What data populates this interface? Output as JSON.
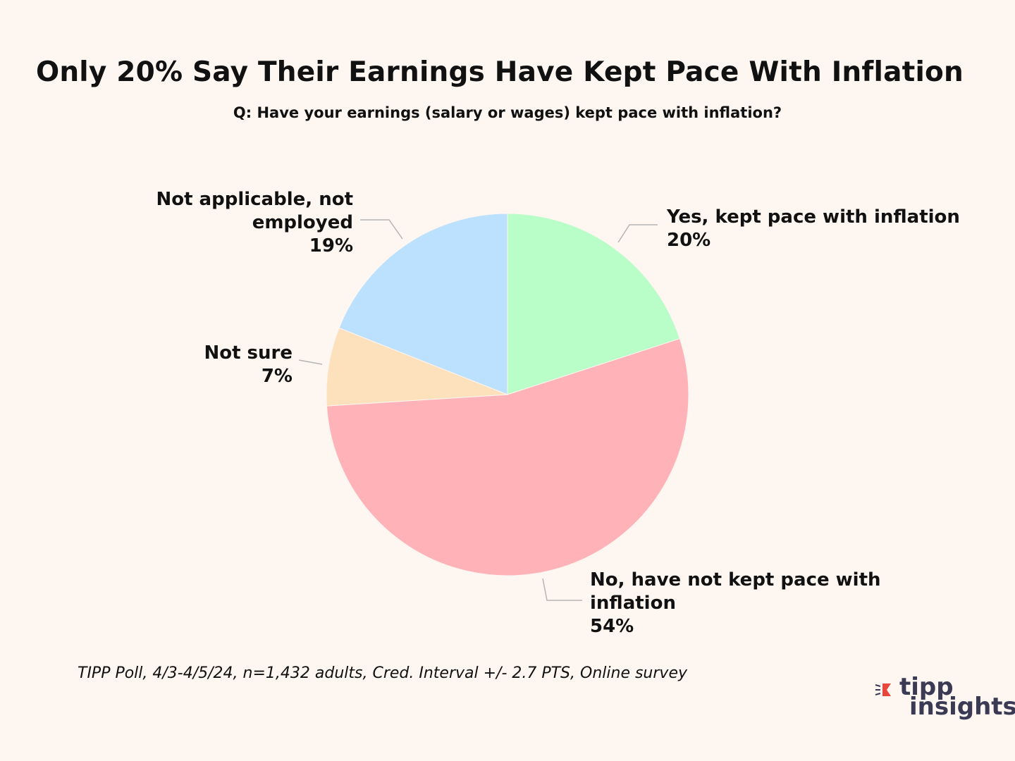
{
  "title": "Only 20% Say Their Earnings Have Kept Pace With Inflation",
  "subtitle": "Q: Have your earnings (salary or wages) kept pace with inflation?",
  "footnote": "TIPP Poll, 4/3-4/5/24, n=1,432 adults, Cred. Interval +/- 2.7 PTS, Online survey",
  "logo": {
    "word1": "tipp",
    "word2": "insights",
    "accent_color": "#e8473d",
    "text_color": "#3b3a55"
  },
  "chart_data": {
    "type": "pie",
    "title": "Only 20% Say Their Earnings Have Kept Pace With Inflation",
    "subtitle": "Q: Have your earnings (salary or wages) kept pace with inflation?",
    "start": "12 o'clock, clockwise",
    "slices": [
      {
        "key": "yes",
        "label_lines": [
          "Yes, kept pace with inflation"
        ],
        "value": 20,
        "value_label": "20%",
        "color": "#b9fdc8"
      },
      {
        "key": "no",
        "label_lines": [
          "No, have not kept pace with",
          "inflation"
        ],
        "value": 54,
        "value_label": "54%",
        "color": "#ffb3b9"
      },
      {
        "key": "not-sure",
        "label_lines": [
          "Not sure"
        ],
        "value": 7,
        "value_label": "7%",
        "color": "#fde0bc"
      },
      {
        "key": "not-applicable",
        "label_lines": [
          "Not applicable, not",
          "employed"
        ],
        "value": 19,
        "value_label": "19%",
        "color": "#bbe1fe"
      }
    ]
  }
}
